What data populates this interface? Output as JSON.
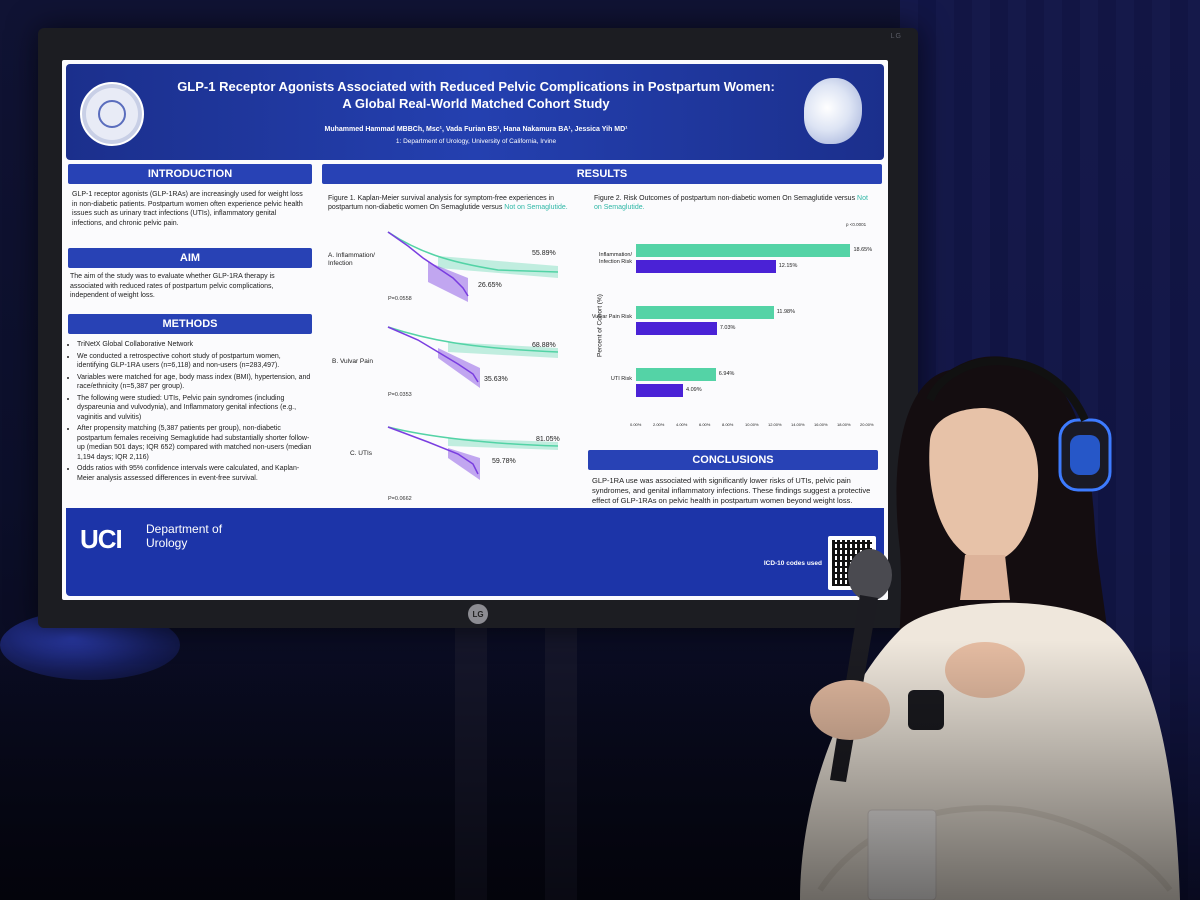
{
  "poster": {
    "title_line1": "GLP-1 Receptor Agonists Associated with Reduced Pelvic Complications in Postpartum Women:",
    "title_line2": "A Global Real-World Matched Cohort Study",
    "authors": "Muhammed Hammad MBBCh, Msc¹, Vada Furian BS¹, Hana Nakamura BA¹, Jessica Yih MD¹",
    "affiliation": "1: Department of Urology, University of California, Irvine",
    "introduction": {
      "heading": "INTRODUCTION",
      "text": "GLP-1 receptor agonists (GLP-1RAs) are increasingly used for weight loss in non-diabetic patients. Postpartum women often experience pelvic health issues such as urinary tract infections (UTIs), inflammatory genital infections, and chronic pelvic pain."
    },
    "aim": {
      "heading": "AIM",
      "text": "The aim of the study was to evaluate whether GLP-1RA therapy is associated with reduced rates of postpartum pelvic complications, independent of weight loss."
    },
    "methods": {
      "heading": "METHODS",
      "items": [
        "TriNetX Global Collaborative Network",
        "We conducted a retrospective cohort study of postpartum women, identifying GLP-1RA users (n=6,118) and non-users (n=283,497).",
        "Variables were matched for age, body mass index (BMI), hypertension, and race/ethnicity (n=5,387 per group).",
        "The following were studied: UTIs, Pelvic pain syndromes (including dyspareunia and vulvodynia), and Inflammatory genital infections (e.g., vaginitis and vulvitis)",
        "After propensity matching (5,387 patients per group), non-diabetic postpartum females receiving Semaglutide had substantially shorter follow-up (median 501 days; IQR 652) compared with matched non-users (median 1,194 days; IQR 2,116)",
        "Odds ratios with 95% confidence intervals were calculated, and Kaplan-Meier analysis assessed differences in event-free survival."
      ]
    },
    "results": {
      "heading": "RESULTS",
      "figure1_caption_a": "Figure 1. Kaplan-Meier survival analysis for symptom-free experiences in postpartum non-diabetic women On Semaglutide versus ",
      "figure1_caption_b": "Not on Semaglutide.",
      "figure2_caption_a": "Figure 2. Risk Outcomes of postpartum non-diabetic women On Semaglutide versus ",
      "figure2_caption_b": "Not on Semaglutide.",
      "km_panels": [
        {
          "label": "A. Inflammation/ Infection",
          "top_value": "55.89%",
          "bottom_value": "26.65%",
          "p": "P=0.0558"
        },
        {
          "label": "B. Vulvar Pain",
          "top_value": "68.88%",
          "bottom_value": "35.63%",
          "p": "P=0.0353"
        },
        {
          "label": "C. UTIs",
          "top_value": "81.05%",
          "bottom_value": "59.78%",
          "p": "P=0.0662"
        }
      ],
      "bar_ylabel": "Percent of Cohort (%)",
      "bar_pnote": "p <0.0001",
      "bar_ticks": [
        "0.00%",
        "2.00%",
        "4.00%",
        "6.00%",
        "8.00%",
        "10.00%",
        "12.00%",
        "14.00%",
        "16.00%",
        "18.00%",
        "20.00%"
      ]
    },
    "conclusions": {
      "heading": "CONCLUSIONS",
      "text": "GLP-1RA use was associated with significantly lower risks of UTIs, pelvic pain syndromes, and genital inflammatory infections. These findings suggest a protective effect of GLP-1RAs on pelvic health in postpartum women beyond weight loss."
    },
    "footer": {
      "logo": "UCI",
      "dept_line1": "Department of",
      "dept_line2": "Urology",
      "icd_note": "ICD-10 codes used"
    }
  },
  "monitor": {
    "brand": "LG"
  },
  "chart_data": {
    "type": "bar",
    "orientation": "horizontal",
    "categories": [
      "Inflammation/ Infection Risk",
      "Vulvar Pain Risk",
      "UTI Risk"
    ],
    "series": [
      {
        "name": "Not on Semaglutide",
        "color": "#54d3a6",
        "values": [
          18.65,
          11.98,
          6.94
        ]
      },
      {
        "name": "On Semaglutide",
        "color": "#4a22d6",
        "values": [
          12.15,
          7.03,
          4.09
        ]
      }
    ],
    "value_labels": [
      [
        "18.65%",
        "11.98%",
        "6.94%"
      ],
      [
        "12.15%",
        "7.03%",
        "4.09%"
      ]
    ],
    "xlim": [
      0,
      20
    ],
    "ylabel": "Percent of Cohort (%)"
  },
  "colors": {
    "poster_blue": "#2842b5",
    "teal": "#54d3a6",
    "purple": "#4a22d6"
  }
}
